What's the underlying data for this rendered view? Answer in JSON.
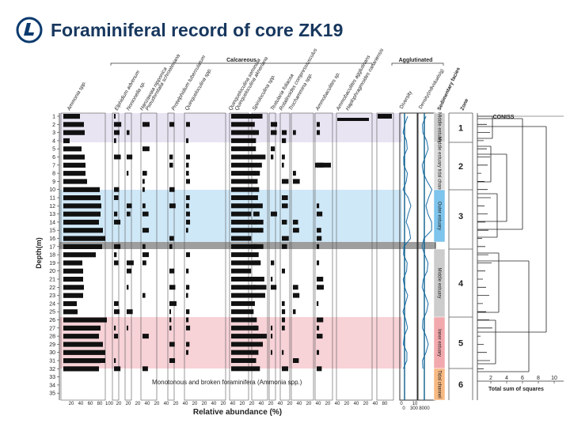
{
  "slide": {
    "title": "Foraminiferal record of core ZK19"
  },
  "figure": {
    "groups": {
      "calcareous": "Calcareous",
      "agglutinated": "Agglutinated"
    },
    "taxa": [
      "Ammonia spp.",
      "Elphidium advenum",
      "Nonionella sp.",
      "Hanzawaia nipponica",
      "Pseudorotalia schroeteriana",
      "Protelphidium tuberculatum",
      "Quinqueloculina spp.",
      "Quinqueloculina seminula",
      "Quinqueloculina akneriana",
      "Spiroloculina spp.",
      "Textularia foliacea",
      "Rotalinoides compressiusculus",
      "Trochammina spp.",
      "Ammobaculites sp.",
      "Ammobaculites agglutinans",
      "Haplophragmoides canariensis"
    ],
    "metric_labels": {
      "diversity": "Diversity",
      "density": "Density(individuals/g)"
    },
    "facies_header": "Sedimentary facies",
    "zone_header": "Zone",
    "coniss_header": "CONISS",
    "y_axis_label": "Depth(m)",
    "x_axis_label": "Relative abundance (%)",
    "depth_ticks": [
      "1",
      "2",
      "3",
      "4",
      "5",
      "6",
      "7",
      "8",
      "9",
      "10",
      "11",
      "12",
      "13",
      "14",
      "15",
      "16",
      "17",
      "18",
      "19",
      "20",
      "21",
      "22",
      "23",
      "24",
      "25",
      "26",
      "27",
      "28",
      "29",
      "30",
      "31",
      "32",
      "33",
      "34",
      "35"
    ],
    "facies": [
      {
        "label": "Middle estuary",
        "color": "#cccccc"
      },
      {
        "label": "Middle estuary tidal channel",
        "color": "#dddddd"
      },
      {
        "label": "Outer estuary",
        "color": "#7ec4ec"
      },
      {
        "label": "Middle estuary",
        "color": "#cccccc"
      },
      {
        "label": "Inner estuary",
        "color": "#f2a9ad"
      },
      {
        "label": "Tidal channel",
        "color": "#f7b983"
      }
    ],
    "zones": [
      "1",
      "2",
      "3",
      "4",
      "5",
      "6"
    ],
    "zone_colors": {
      "1": "#e8e4f2",
      "2": "#ffffff",
      "3": "#cfe8f8",
      "4": "#ffffff",
      "5": "#f7d2d6",
      "6": "#ffffff"
    },
    "annotation": "Monotonous and broken foraminifera (Ammonia spp.)",
    "abundance_tick_labels": [
      "20",
      "40",
      "60",
      "80",
      "100",
      "20",
      "20",
      "20",
      "40",
      "20",
      "40",
      "20",
      "40",
      "20",
      "20",
      "40",
      "20",
      "40",
      "20",
      "20",
      "40",
      "20",
      "40",
      "20",
      "40",
      "20",
      "40",
      "20",
      "40",
      "20",
      "40",
      "20",
      "40",
      "80"
    ],
    "diversity_ticks": [
      "0",
      "10"
    ],
    "density_ticks": [
      "0",
      "300",
      "8000"
    ],
    "coniss_ticks": [
      "2",
      "4",
      "6",
      "8",
      "10"
    ],
    "coniss_axis_label": "Total sum of squares"
  }
}
